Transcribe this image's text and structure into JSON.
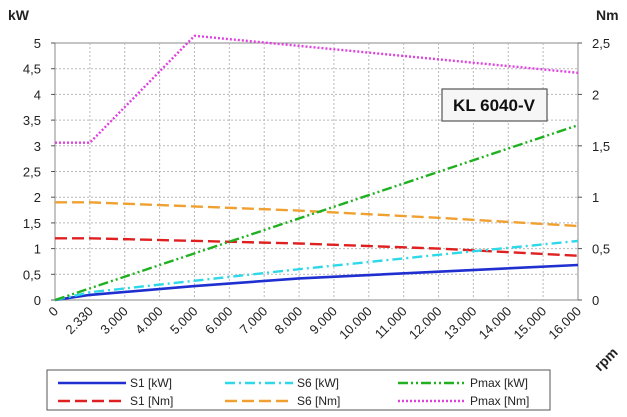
{
  "chart_data": {
    "type": "line",
    "model_label": "KL 6040-V",
    "left_axis": {
      "unit": "kW",
      "range": [
        0,
        5
      ],
      "ticks": [
        "0",
        "0,5",
        "1",
        "1,5",
        "2",
        "2,5",
        "3",
        "3,5",
        "4",
        "4,5",
        "5"
      ]
    },
    "right_axis": {
      "unit": "Nm",
      "range": [
        0,
        2.5
      ],
      "ticks": [
        "0",
        "0,5",
        "1",
        "1,5",
        "2",
        "2,5"
      ]
    },
    "x_axis": {
      "unit": "rpm",
      "ticks": [
        "0",
        "2.330",
        "3.000",
        "4.000",
        "5.000",
        "6.000",
        "7.000",
        "8.000",
        "9.000",
        "10.000",
        "11.000",
        "12.000",
        "13.000",
        "14.000",
        "15.000",
        "16.000"
      ]
    },
    "grid": true,
    "legend_position": "bottom",
    "series": [
      {
        "name": "S1 [kW]",
        "axis": "left",
        "color": "#1f2fd0",
        "style": "solid",
        "x": [
          0,
          2330,
          5000,
          8000,
          12000,
          16000
        ],
        "y": [
          0,
          0.1,
          0.27,
          0.42,
          0.55,
          0.68
        ]
      },
      {
        "name": "S1 [Nm]",
        "axis": "right",
        "color": "#e02020",
        "style": "dash",
        "x": [
          0,
          2330,
          8000,
          12000,
          16000
        ],
        "y": [
          0.6,
          0.6,
          0.55,
          0.5,
          0.43
        ]
      },
      {
        "name": "S6 [kW]",
        "axis": "left",
        "color": "#2fd8e8",
        "style": "dashdot",
        "x": [
          0,
          2330,
          8000,
          12000,
          16000
        ],
        "y": [
          0,
          0.15,
          0.6,
          0.88,
          1.15
        ]
      },
      {
        "name": "S6 [Nm]",
        "axis": "right",
        "color": "#f0a030",
        "style": "dash",
        "x": [
          0,
          2330,
          8000,
          12000,
          16000
        ],
        "y": [
          0.95,
          0.95,
          0.87,
          0.8,
          0.72
        ]
      },
      {
        "name": "Pmax [kW]",
        "axis": "left",
        "color": "#20b020",
        "style": "dashdotdot",
        "x": [
          0,
          16000
        ],
        "y": [
          0,
          3.4
        ]
      },
      {
        "name": "Pmax [Nm]",
        "axis": "right",
        "color": "#e040e0",
        "style": "dot",
        "x": [
          0,
          2330,
          5000,
          16000
        ],
        "y": [
          1.53,
          1.53,
          2.57,
          2.21
        ]
      }
    ]
  }
}
